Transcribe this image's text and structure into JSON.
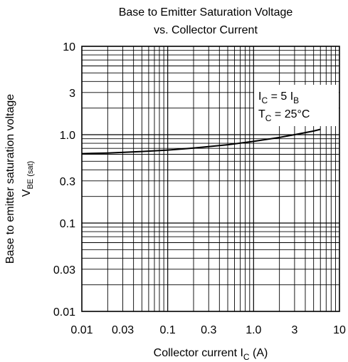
{
  "chart_data": {
    "type": "line",
    "title_line1": "Base to Emitter Saturation Voltage",
    "title_line2": "vs. Collector Current",
    "ylabel": "Base to emitter saturation voltage",
    "ylabel_symbol": "V",
    "ylabel_symbol_sub": "BE (sat)",
    "xlabel": "Collector current  I",
    "xlabel_sub": "C",
    "xlabel_unit": "(A)",
    "x_scale": "log",
    "y_scale": "log",
    "xlim": [
      0.01,
      10
    ],
    "ylim": [
      0.01,
      10
    ],
    "grid": true,
    "x_ticks": [
      {
        "value": 0.01,
        "label": "0.01"
      },
      {
        "value": 0.03,
        "label": "0.03"
      },
      {
        "value": 0.1,
        "label": "0.1"
      },
      {
        "value": 0.3,
        "label": "0.3"
      },
      {
        "value": 1,
        "label": "1.0"
      },
      {
        "value": 3,
        "label": "3"
      },
      {
        "value": 10,
        "label": "10"
      }
    ],
    "y_ticks": [
      {
        "value": 0.01,
        "label": "0.01"
      },
      {
        "value": 0.03,
        "label": "0.03"
      },
      {
        "value": 0.1,
        "label": "0.1"
      },
      {
        "value": 0.3,
        "label": "0.3"
      },
      {
        "value": 1,
        "label": "1.0"
      },
      {
        "value": 3,
        "label": "3"
      },
      {
        "value": 10,
        "label": "10"
      }
    ],
    "annotation": {
      "line1_main": "I",
      "line1_sub": "C",
      "line1_mid": " = 5 I",
      "line1_sub2": "B",
      "line2_main": "T",
      "line2_sub": "C",
      "line2_rest": " = 25°C"
    },
    "series": [
      {
        "x": [
          0.01,
          0.02,
          0.05,
          0.1,
          0.2,
          0.5,
          1.0,
          2.0,
          3.0,
          5.0,
          6.0
        ],
        "y": [
          0.61,
          0.62,
          0.645,
          0.67,
          0.705,
          0.77,
          0.84,
          0.93,
          1.0,
          1.1,
          1.15
        ]
      }
    ],
    "colors": {
      "line": "#000000",
      "grid": "#000000",
      "background": "#ffffff"
    }
  }
}
